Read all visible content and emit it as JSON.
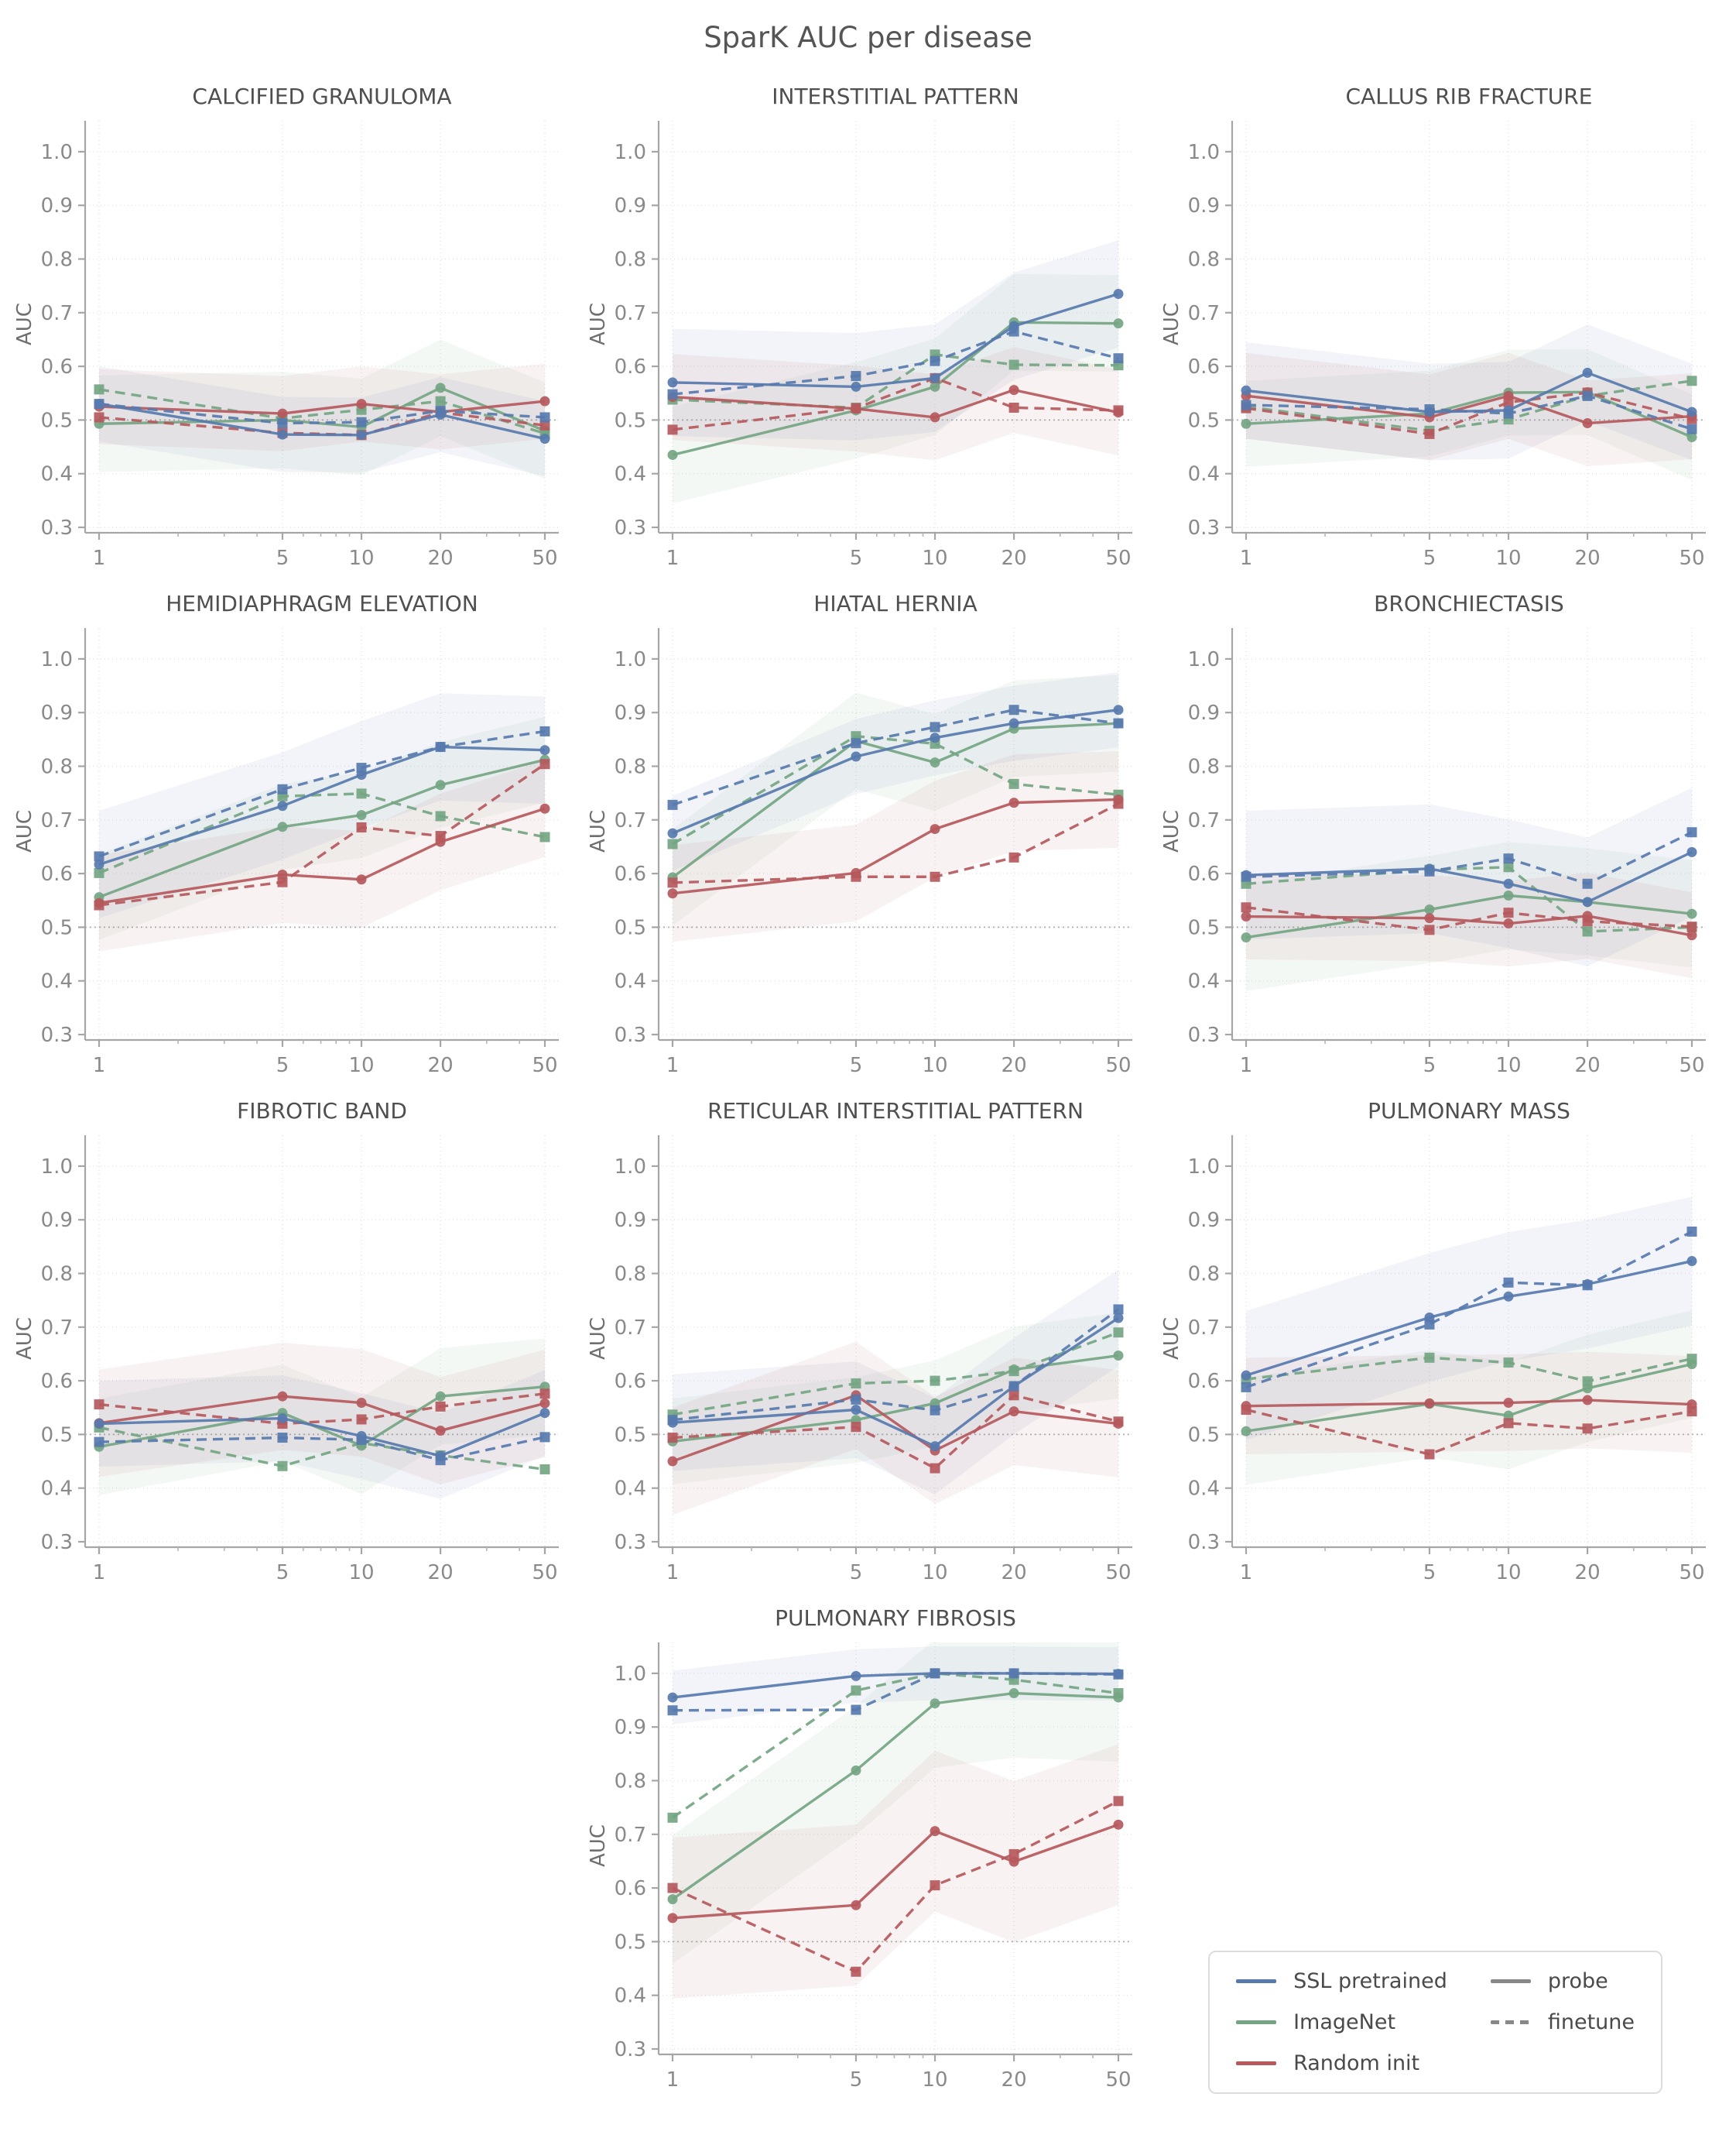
{
  "figure": {
    "title": "SparK AUC per disease"
  },
  "legend": {
    "groups": [
      {
        "key": "ssl",
        "label": "SSL pretrained",
        "color": "#5779ae"
      },
      {
        "key": "imagenet",
        "label": "ImageNet",
        "color": "#74a583"
      },
      {
        "key": "random",
        "label": "Random init",
        "color": "#b5595d"
      }
    ],
    "styles": [
      {
        "key": "probe",
        "label": "probe",
        "dash": "solid",
        "color": "#888888"
      },
      {
        "key": "finetune",
        "label": "finetune",
        "dash": "dashed",
        "color": "#888888"
      }
    ]
  },
  "chart_data": {
    "type": "line",
    "x": [
      1,
      5,
      10,
      20,
      50
    ],
    "x_scale": "log",
    "xticks": [
      1,
      5,
      10,
      20,
      50
    ],
    "x_minor_ticks": [
      2,
      3,
      4,
      6,
      7,
      8,
      9,
      30,
      40
    ],
    "yticks": [
      0.3,
      0.4,
      0.5,
      0.6,
      0.7,
      0.8,
      0.9,
      1.0
    ],
    "ylim": [
      0.29,
      1.06
    ],
    "ylabel": "AUC",
    "reference_line": 0.5,
    "grid": true,
    "legend_position": "bottom-right",
    "series_keys": [
      "imagenet_probe",
      "imagenet_finetune",
      "random_probe",
      "random_finetune",
      "ssl_probe",
      "ssl_finetune"
    ],
    "panels": [
      {
        "title": "CALCIFIED GRANULOMA",
        "grid": [
          1,
          1
        ],
        "series": {
          "ssl_probe": [
            0.53,
            0.473,
            0.472,
            0.51,
            0.465
          ],
          "ssl_finetune": [
            0.53,
            0.494,
            0.496,
            0.517,
            0.505
          ],
          "imagenet_probe": [
            0.493,
            0.5,
            0.487,
            0.56,
            0.48
          ],
          "imagenet_finetune": [
            0.557,
            0.503,
            0.519,
            0.535,
            0.475
          ],
          "random_probe": [
            0.525,
            0.512,
            0.53,
            0.515,
            0.535
          ],
          "random_finetune": [
            0.505,
            0.476,
            0.472,
            0.514,
            0.49
          ]
        },
        "band_halfwidth": {
          "ssl": 0.07,
          "imagenet": 0.09,
          "random": 0.07
        }
      },
      {
        "title": "INTERSTITIAL PATTERN",
        "grid": [
          1,
          2
        ],
        "series": {
          "ssl_probe": [
            0.57,
            0.562,
            0.578,
            0.675,
            0.735
          ],
          "ssl_finetune": [
            0.548,
            0.582,
            0.61,
            0.665,
            0.615
          ],
          "imagenet_probe": [
            0.435,
            0.518,
            0.562,
            0.682,
            0.68
          ],
          "imagenet_finetune": [
            0.538,
            0.523,
            0.622,
            0.603,
            0.602
          ],
          "random_probe": [
            0.543,
            0.521,
            0.505,
            0.556,
            0.514
          ],
          "random_finetune": [
            0.482,
            0.522,
            0.578,
            0.523,
            0.518
          ]
        },
        "band_halfwidth": {
          "ssl": 0.1,
          "imagenet": 0.09,
          "random": 0.08
        }
      },
      {
        "title": "CALLUS RIB FRACTURE",
        "grid": [
          1,
          3
        ],
        "series": {
          "ssl_probe": [
            0.555,
            0.515,
            0.518,
            0.588,
            0.515
          ],
          "ssl_finetune": [
            0.528,
            0.52,
            0.512,
            0.545,
            0.483
          ],
          "imagenet_probe": [
            0.493,
            0.512,
            0.551,
            0.552,
            0.468
          ],
          "imagenet_finetune": [
            0.525,
            0.48,
            0.501,
            0.545,
            0.573
          ],
          "random_probe": [
            0.545,
            0.505,
            0.545,
            0.494,
            0.507
          ],
          "random_finetune": [
            0.522,
            0.474,
            0.533,
            0.551,
            0.502
          ]
        },
        "band_halfwidth": {
          "ssl": 0.09,
          "imagenet": 0.08,
          "random": 0.08
        }
      },
      {
        "title": "HEMIDIAPHRAGM ELEVATION",
        "grid": [
          2,
          1
        ],
        "series": {
          "ssl_probe": [
            0.617,
            0.726,
            0.784,
            0.836,
            0.83
          ],
          "ssl_finetune": [
            0.632,
            0.757,
            0.797,
            0.836,
            0.865
          ],
          "imagenet_probe": [
            0.556,
            0.687,
            0.709,
            0.765,
            0.812
          ],
          "imagenet_finetune": [
            0.601,
            0.744,
            0.749,
            0.707,
            0.668
          ],
          "random_probe": [
            0.545,
            0.598,
            0.589,
            0.659,
            0.721
          ],
          "random_finetune": [
            0.541,
            0.584,
            0.686,
            0.67,
            0.804
          ]
        },
        "band_halfwidth": {
          "ssl": 0.1,
          "imagenet": 0.08,
          "random": 0.09
        }
      },
      {
        "title": "HIATAL HERNIA",
        "grid": [
          2,
          2
        ],
        "series": {
          "ssl_probe": [
            0.675,
            0.818,
            0.853,
            0.88,
            0.905
          ],
          "ssl_finetune": [
            0.728,
            0.843,
            0.873,
            0.905,
            0.88
          ],
          "imagenet_probe": [
            0.593,
            0.847,
            0.807,
            0.87,
            0.88
          ],
          "imagenet_finetune": [
            0.655,
            0.856,
            0.842,
            0.767,
            0.747
          ],
          "random_probe": [
            0.563,
            0.601,
            0.683,
            0.732,
            0.738
          ],
          "random_finetune": [
            0.583,
            0.594,
            0.594,
            0.63,
            0.73
          ]
        },
        "band_halfwidth": {
          "ssl": 0.07,
          "imagenet": 0.09,
          "random": 0.09
        }
      },
      {
        "title": "BRONCHIECTASIS",
        "grid": [
          2,
          3
        ],
        "series": {
          "ssl_probe": [
            0.597,
            0.609,
            0.581,
            0.547,
            0.64
          ],
          "ssl_finetune": [
            0.594,
            0.604,
            0.628,
            0.581,
            0.677
          ],
          "imagenet_probe": [
            0.481,
            0.533,
            0.559,
            0.547,
            0.525
          ],
          "imagenet_finetune": [
            0.581,
            0.607,
            0.612,
            0.492,
            0.5
          ],
          "random_probe": [
            0.52,
            0.517,
            0.507,
            0.521,
            0.485
          ],
          "random_finetune": [
            0.537,
            0.495,
            0.527,
            0.511,
            0.501
          ]
        },
        "band_halfwidth": {
          "ssl": 0.12,
          "imagenet": 0.1,
          "random": 0.08
        }
      },
      {
        "title": "FIBROTIC BAND",
        "grid": [
          3,
          1
        ],
        "series": {
          "ssl_probe": [
            0.52,
            0.53,
            0.497,
            0.46,
            0.54
          ],
          "ssl_finetune": [
            0.486,
            0.494,
            0.49,
            0.452,
            0.495
          ],
          "imagenet_probe": [
            0.477,
            0.54,
            0.479,
            0.571,
            0.589
          ],
          "imagenet_finetune": [
            0.513,
            0.441,
            0.484,
            0.461,
            0.435
          ],
          "random_probe": [
            0.521,
            0.571,
            0.559,
            0.507,
            0.558
          ],
          "random_finetune": [
            0.556,
            0.52,
            0.528,
            0.552,
            0.576
          ]
        },
        "band_halfwidth": {
          "ssl": 0.08,
          "imagenet": 0.09,
          "random": 0.1
        }
      },
      {
        "title": "RETICULAR INTERSTITIAL PATTERN",
        "grid": [
          3,
          2
        ],
        "series": {
          "ssl_probe": [
            0.522,
            0.546,
            0.478,
            0.59,
            0.717
          ],
          "ssl_finetune": [
            0.527,
            0.565,
            0.545,
            0.59,
            0.733
          ],
          "imagenet_probe": [
            0.487,
            0.527,
            0.558,
            0.621,
            0.647
          ],
          "imagenet_finetune": [
            0.537,
            0.595,
            0.6,
            0.618,
            0.69
          ],
          "random_probe": [
            0.45,
            0.573,
            0.47,
            0.543,
            0.52
          ],
          "random_finetune": [
            0.494,
            0.514,
            0.437,
            0.573,
            0.524
          ]
        },
        "band_halfwidth": {
          "ssl": 0.09,
          "imagenet": 0.08,
          "random": 0.1
        }
      },
      {
        "title": "PULMONARY MASS",
        "grid": [
          3,
          3
        ],
        "series": {
          "ssl_probe": [
            0.61,
            0.718,
            0.757,
            0.78,
            0.823
          ],
          "ssl_finetune": [
            0.588,
            0.705,
            0.783,
            0.778,
            0.878
          ],
          "imagenet_probe": [
            0.506,
            0.557,
            0.535,
            0.586,
            0.631
          ],
          "imagenet_finetune": [
            0.603,
            0.643,
            0.634,
            0.599,
            0.641
          ],
          "random_probe": [
            0.553,
            0.558,
            0.559,
            0.564,
            0.556
          ],
          "random_finetune": [
            0.546,
            0.463,
            0.521,
            0.511,
            0.543
          ]
        },
        "band_halfwidth": {
          "ssl": 0.12,
          "imagenet": 0.1,
          "random": 0.09
        }
      },
      {
        "title": "PULMONARY FIBROSIS",
        "grid": [
          4,
          2
        ],
        "series": {
          "ssl_probe": [
            0.955,
            0.995,
            1.0,
            1.0,
            0.999
          ],
          "ssl_finetune": [
            0.931,
            0.932,
            1.0,
            1.0,
            0.998
          ],
          "imagenet_probe": [
            0.579,
            0.819,
            0.944,
            0.963,
            0.955
          ],
          "imagenet_finetune": [
            0.731,
            0.968,
            1.0,
            0.988,
            0.963
          ],
          "random_probe": [
            0.544,
            0.568,
            0.706,
            0.649,
            0.718
          ],
          "random_finetune": [
            0.6,
            0.444,
            0.605,
            0.663,
            0.762
          ]
        },
        "band_halfwidth": {
          "ssl": 0.05,
          "imagenet": 0.12,
          "random": 0.15
        }
      }
    ]
  }
}
